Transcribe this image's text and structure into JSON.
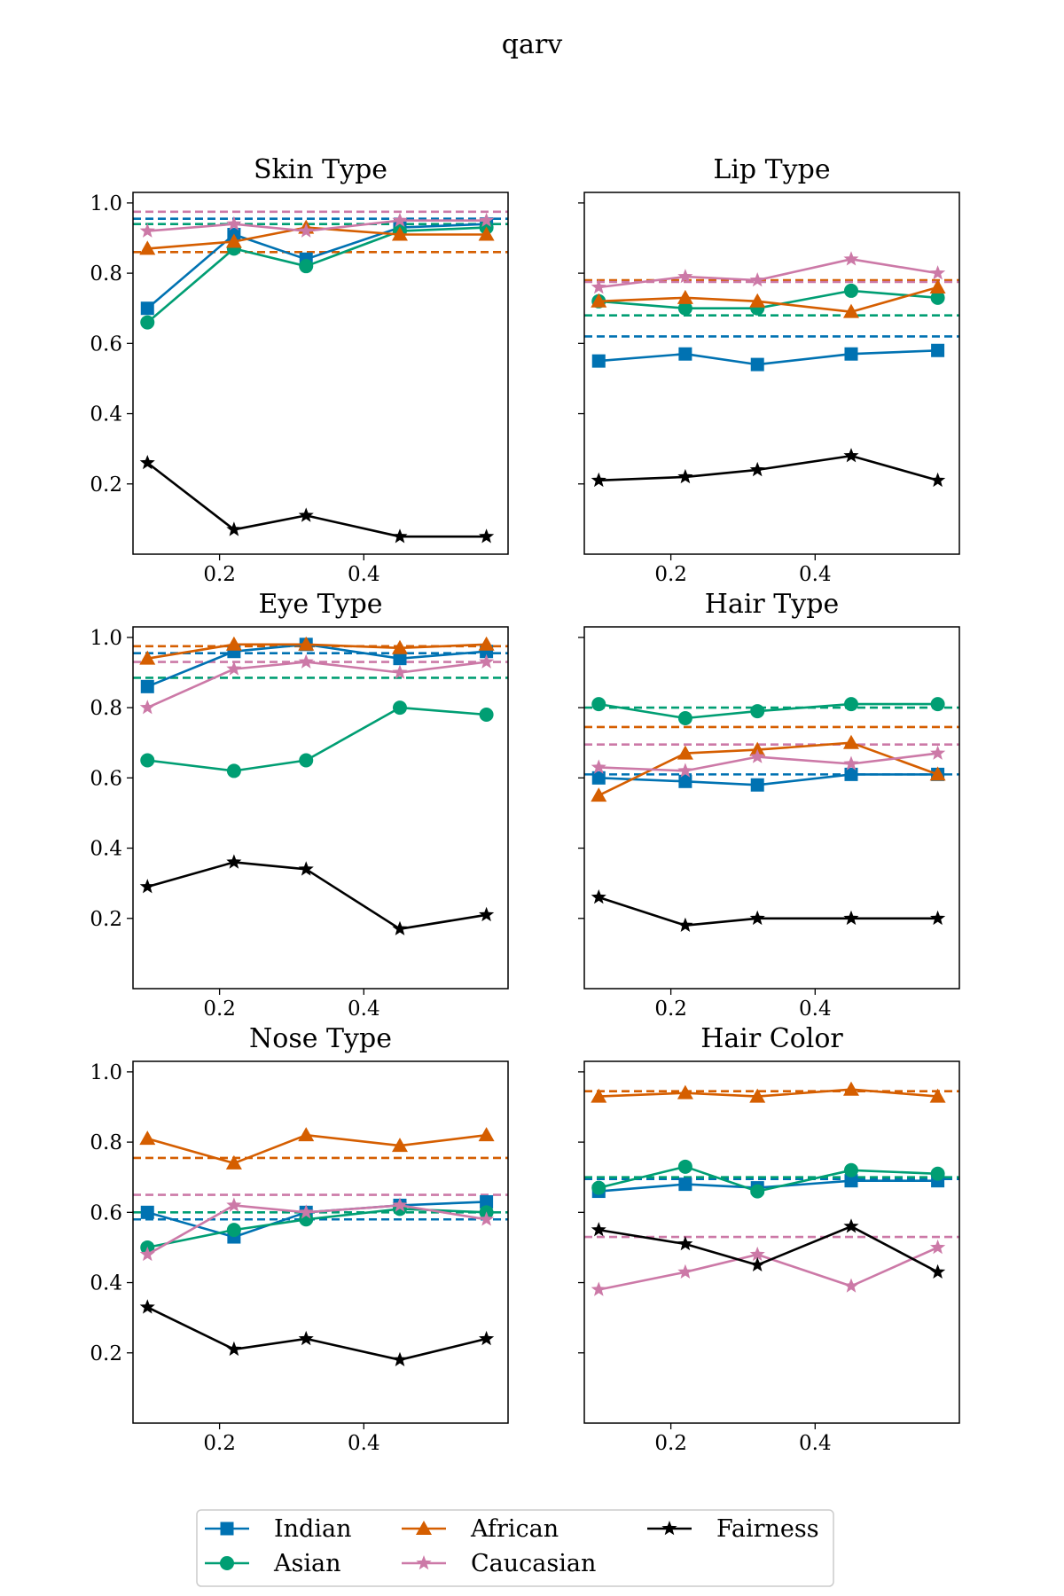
{
  "figure_title": "qarv",
  "legend": {
    "items": [
      {
        "label": "Indian",
        "color": "#0072b2",
        "marker": "square"
      },
      {
        "label": "African",
        "color": "#d55e00",
        "marker": "triangle"
      },
      {
        "label": "Fairness",
        "color": "#000000",
        "marker": "star"
      },
      {
        "label": "Asian",
        "color": "#009e73",
        "marker": "circle"
      },
      {
        "label": "Caucasian",
        "color": "#cc79a7",
        "marker": "star"
      }
    ]
  },
  "chart_data": [
    {
      "type": "line",
      "title": "Skin Type",
      "x": [
        0.1,
        0.22,
        0.32,
        0.45,
        0.57
      ],
      "xlim": [
        0.08,
        0.6
      ],
      "ylim": [
        0.0,
        1.03
      ],
      "xticks": [
        "0.2",
        "0.4"
      ],
      "yticks": [
        "0.2",
        "0.4",
        "0.6",
        "0.8",
        "1.0"
      ],
      "ytick_labels_shown": true,
      "series": [
        {
          "name": "Indian",
          "values": [
            0.7,
            0.91,
            0.84,
            0.93,
            0.94
          ],
          "baseline": 0.955
        },
        {
          "name": "Asian",
          "values": [
            0.66,
            0.87,
            0.82,
            0.92,
            0.93
          ],
          "baseline": 0.94
        },
        {
          "name": "African",
          "values": [
            0.87,
            0.89,
            0.93,
            0.91,
            0.91
          ],
          "baseline": 0.86
        },
        {
          "name": "Caucasian",
          "values": [
            0.92,
            0.94,
            0.92,
            0.95,
            0.95
          ],
          "baseline": 0.975
        },
        {
          "name": "Fairness",
          "values": [
            0.26,
            0.07,
            0.11,
            0.05,
            0.05
          ]
        }
      ]
    },
    {
      "type": "line",
      "title": "Lip Type",
      "x": [
        0.1,
        0.22,
        0.32,
        0.45,
        0.57
      ],
      "xlim": [
        0.08,
        0.6
      ],
      "ylim": [
        0.0,
        1.03
      ],
      "xticks": [
        "0.2",
        "0.4"
      ],
      "yticks": [
        "0.2",
        "0.4",
        "0.6",
        "0.8",
        "1.0"
      ],
      "ytick_labels_shown": false,
      "series": [
        {
          "name": "Indian",
          "values": [
            0.55,
            0.57,
            0.54,
            0.57,
            0.58
          ],
          "baseline": 0.62
        },
        {
          "name": "Asian",
          "values": [
            0.72,
            0.7,
            0.7,
            0.75,
            0.73
          ],
          "baseline": 0.68
        },
        {
          "name": "African",
          "values": [
            0.72,
            0.73,
            0.72,
            0.69,
            0.76
          ],
          "baseline": 0.78
        },
        {
          "name": "Caucasian",
          "values": [
            0.76,
            0.79,
            0.78,
            0.84,
            0.8
          ],
          "baseline": 0.775
        },
        {
          "name": "Fairness",
          "values": [
            0.21,
            0.22,
            0.24,
            0.28,
            0.21
          ]
        }
      ]
    },
    {
      "type": "line",
      "title": "Eye Type",
      "x": [
        0.1,
        0.22,
        0.32,
        0.45,
        0.57
      ],
      "xlim": [
        0.08,
        0.6
      ],
      "ylim": [
        0.0,
        1.03
      ],
      "xticks": [
        "0.2",
        "0.4"
      ],
      "yticks": [
        "0.2",
        "0.4",
        "0.6",
        "0.8",
        "1.0"
      ],
      "ytick_labels_shown": true,
      "series": [
        {
          "name": "Indian",
          "values": [
            0.86,
            0.96,
            0.98,
            0.94,
            0.96
          ],
          "baseline": 0.955
        },
        {
          "name": "Asian",
          "values": [
            0.65,
            0.62,
            0.65,
            0.8,
            0.78
          ],
          "baseline": 0.885
        },
        {
          "name": "African",
          "values": [
            0.94,
            0.98,
            0.98,
            0.97,
            0.98
          ],
          "baseline": 0.975
        },
        {
          "name": "Caucasian",
          "values": [
            0.8,
            0.91,
            0.93,
            0.9,
            0.93
          ],
          "baseline": 0.93
        },
        {
          "name": "Fairness",
          "values": [
            0.29,
            0.36,
            0.34,
            0.17,
            0.21
          ]
        }
      ]
    },
    {
      "type": "line",
      "title": "Hair Type",
      "x": [
        0.1,
        0.22,
        0.32,
        0.45,
        0.57
      ],
      "xlim": [
        0.08,
        0.6
      ],
      "ylim": [
        0.0,
        1.03
      ],
      "xticks": [
        "0.2",
        "0.4"
      ],
      "yticks": [
        "0.2",
        "0.4",
        "0.6",
        "0.8",
        "1.0"
      ],
      "ytick_labels_shown": false,
      "series": [
        {
          "name": "Indian",
          "values": [
            0.6,
            0.59,
            0.58,
            0.61,
            0.61
          ],
          "baseline": 0.61
        },
        {
          "name": "Asian",
          "values": [
            0.81,
            0.77,
            0.79,
            0.81,
            0.81
          ],
          "baseline": 0.8
        },
        {
          "name": "African",
          "values": [
            0.55,
            0.67,
            0.68,
            0.7,
            0.61
          ],
          "baseline": 0.745
        },
        {
          "name": "Caucasian",
          "values": [
            0.63,
            0.62,
            0.66,
            0.64,
            0.67
          ],
          "baseline": 0.695
        },
        {
          "name": "Fairness",
          "values": [
            0.26,
            0.18,
            0.2,
            0.2,
            0.2
          ]
        }
      ]
    },
    {
      "type": "line",
      "title": "Nose Type",
      "x": [
        0.1,
        0.22,
        0.32,
        0.45,
        0.57
      ],
      "xlim": [
        0.08,
        0.6
      ],
      "ylim": [
        0.0,
        1.03
      ],
      "xticks": [
        "0.2",
        "0.4"
      ],
      "yticks": [
        "0.2",
        "0.4",
        "0.6",
        "0.8",
        "1.0"
      ],
      "ytick_labels_shown": true,
      "series": [
        {
          "name": "Indian",
          "values": [
            0.6,
            0.53,
            0.6,
            0.62,
            0.63
          ],
          "baseline": 0.58
        },
        {
          "name": "Asian",
          "values": [
            0.5,
            0.55,
            0.58,
            0.61,
            0.6
          ],
          "baseline": 0.6
        },
        {
          "name": "African",
          "values": [
            0.81,
            0.74,
            0.82,
            0.79,
            0.82
          ],
          "baseline": 0.755
        },
        {
          "name": "Caucasian",
          "values": [
            0.48,
            0.62,
            0.6,
            0.62,
            0.58
          ],
          "baseline": 0.65
        },
        {
          "name": "Fairness",
          "values": [
            0.33,
            0.21,
            0.24,
            0.18,
            0.24
          ]
        }
      ]
    },
    {
      "type": "line",
      "title": "Hair Color",
      "x": [
        0.1,
        0.22,
        0.32,
        0.45,
        0.57
      ],
      "xlim": [
        0.08,
        0.6
      ],
      "ylim": [
        0.0,
        1.03
      ],
      "xticks": [
        "0.2",
        "0.4"
      ],
      "yticks": [
        "0.2",
        "0.4",
        "0.6",
        "0.8",
        "1.0"
      ],
      "ytick_labels_shown": false,
      "series": [
        {
          "name": "Indian",
          "values": [
            0.66,
            0.68,
            0.67,
            0.69,
            0.69
          ],
          "baseline": 0.695
        },
        {
          "name": "Asian",
          "values": [
            0.67,
            0.73,
            0.66,
            0.72,
            0.71
          ],
          "baseline": 0.7
        },
        {
          "name": "African",
          "values": [
            0.93,
            0.94,
            0.93,
            0.95,
            0.93
          ],
          "baseline": 0.945
        },
        {
          "name": "Caucasian",
          "values": [
            0.38,
            0.43,
            0.48,
            0.39,
            0.5
          ],
          "baseline": 0.53
        },
        {
          "name": "Fairness",
          "values": [
            0.55,
            0.51,
            0.45,
            0.56,
            0.43
          ]
        }
      ]
    }
  ]
}
